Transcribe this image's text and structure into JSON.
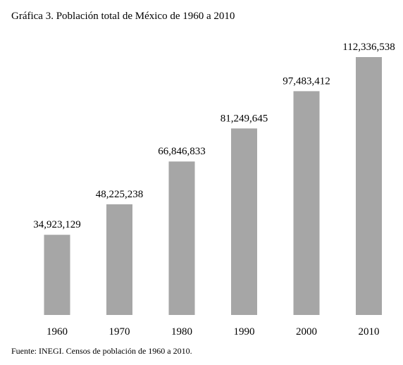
{
  "chart_data": {
    "type": "bar",
    "title": "Gráfica 3. Población total de México de 1960 a 2010",
    "categories": [
      "1960",
      "1970",
      "1980",
      "1990",
      "2000",
      "2010"
    ],
    "values": [
      34923129,
      48225238,
      66846833,
      81249645,
      97483412,
      112336538
    ],
    "value_labels": [
      "34,923,129",
      "48,225,238",
      "66,846,833",
      "81,249,645",
      "97,483,412",
      "112,336,538"
    ],
    "xlabel": "",
    "ylabel": "",
    "ylim": [
      0,
      112336538
    ],
    "grid": false,
    "legend": "none",
    "bar_color": "#a6a6a6"
  },
  "source": "Fuente: INEGI. Censos de población de 1960 a 2010."
}
